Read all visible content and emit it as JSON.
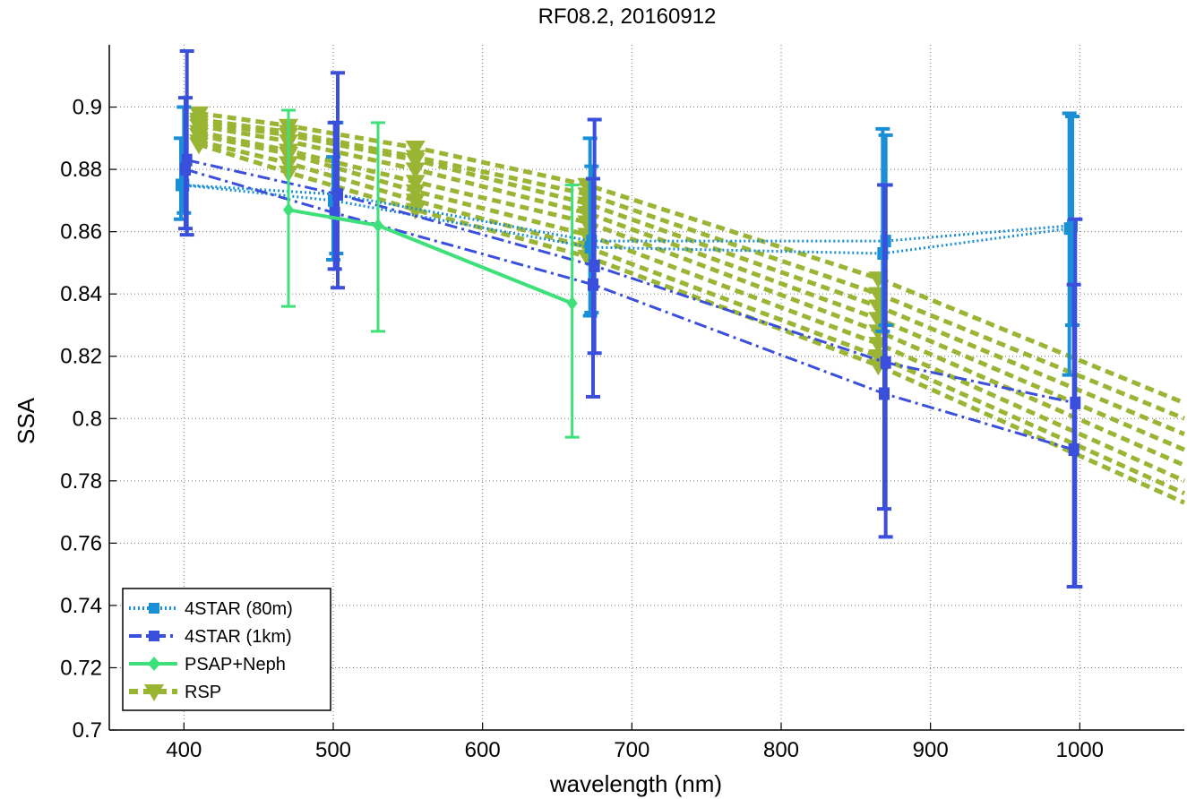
{
  "chart_data": {
    "type": "line",
    "title": "RF08.2, 20160912",
    "xlabel": "wavelength (nm)",
    "ylabel": "SSA",
    "xlim": [
      350,
      1070
    ],
    "ylim": [
      0.7,
      0.92
    ],
    "xticks": [
      400,
      500,
      600,
      700,
      800,
      900,
      1000
    ],
    "yticks": [
      0.7,
      0.72,
      0.74,
      0.76,
      0.78,
      0.8,
      0.82,
      0.84,
      0.86,
      0.88,
      0.9
    ],
    "xtick_labels": [
      "400",
      "500",
      "600",
      "700",
      "800",
      "900",
      "1000"
    ],
    "ytick_labels": [
      "0.7",
      "0.72",
      "0.74",
      "0.76",
      "0.78",
      "0.8",
      "0.82",
      "0.84",
      "0.86",
      "0.88",
      "0.9"
    ],
    "grid": true,
    "legend_position": "bottom-left",
    "series": [
      {
        "name": "4STAR (80m)",
        "color": "#1a8fd6",
        "line": "dotted",
        "marker": "square",
        "curves": [
          {
            "x": [
              398,
              500,
              672,
              868,
              993
            ],
            "y": [
              0.875,
              0.87,
              0.855,
              0.853,
              0.861
            ],
            "yerr_low": [
              0.864,
              0.851,
              0.833,
              0.828,
              0.814
            ],
            "yerr_high": [
              0.89,
              0.884,
              0.89,
              0.893,
              0.898
            ]
          },
          {
            "x": [
              400,
              502,
              673,
              870,
              995
            ],
            "y": [
              0.875,
              0.872,
              0.857,
              0.857,
              0.862
            ],
            "yerr_low": [
              0.866,
              0.853,
              0.834,
              0.83,
              0.83
            ],
            "yerr_high": [
              0.9,
              0.895,
              0.881,
              0.891,
              0.897
            ]
          }
        ]
      },
      {
        "name": "4STAR (1km)",
        "color": "#3a4fdc",
        "line": "dashdot",
        "marker": "square",
        "curves": [
          {
            "x": [
              402,
              503,
              675,
              870,
              997
            ],
            "y": [
              0.883,
              0.872,
              0.849,
              0.818,
              0.805
            ],
            "yerr_low": [
              0.859,
              0.842,
              0.821,
              0.762,
              0.746
            ],
            "yerr_high": [
              0.918,
              0.911,
              0.896,
              0.875,
              0.864
            ]
          },
          {
            "x": [
              401,
              501,
              674,
              869,
              996
            ],
            "y": [
              0.88,
              0.866,
              0.843,
              0.808,
              0.79
            ],
            "yerr_low": [
              0.861,
              0.848,
              0.807,
              0.771,
              0.746
            ],
            "yerr_high": [
              0.903,
              0.895,
              0.877,
              0.875,
              0.843
            ]
          }
        ]
      },
      {
        "name": "PSAP+Neph",
        "color": "#3ee07a",
        "line": "solid",
        "marker": "diamond",
        "curves": [
          {
            "x": [
              470,
              530,
              660
            ],
            "y": [
              0.867,
              0.862,
              0.837
            ],
            "yerr_low": [
              0.836,
              0.828,
              0.794
            ],
            "yerr_high": [
              0.899,
              0.895,
              0.875
            ]
          }
        ]
      },
      {
        "name": "RSP",
        "color": "#9ab534",
        "line": "dashed",
        "marker": "triangle-down",
        "wavelengths": [
          410,
          470,
          555,
          670,
          865,
          1070
        ],
        "curves": [
          [
            0.898,
            0.894,
            0.887,
            0.875,
            0.845,
            0.805
          ],
          [
            0.896,
            0.892,
            0.884,
            0.872,
            0.84,
            0.8
          ],
          [
            0.895,
            0.891,
            0.883,
            0.869,
            0.836,
            0.795
          ],
          [
            0.894,
            0.889,
            0.88,
            0.866,
            0.832,
            0.79
          ],
          [
            0.892,
            0.886,
            0.876,
            0.863,
            0.828,
            0.785
          ],
          [
            0.891,
            0.885,
            0.873,
            0.859,
            0.824,
            0.78
          ],
          [
            0.889,
            0.882,
            0.87,
            0.855,
            0.82,
            0.776
          ],
          [
            0.888,
            0.879,
            0.867,
            0.852,
            0.817,
            0.773
          ]
        ]
      }
    ]
  }
}
